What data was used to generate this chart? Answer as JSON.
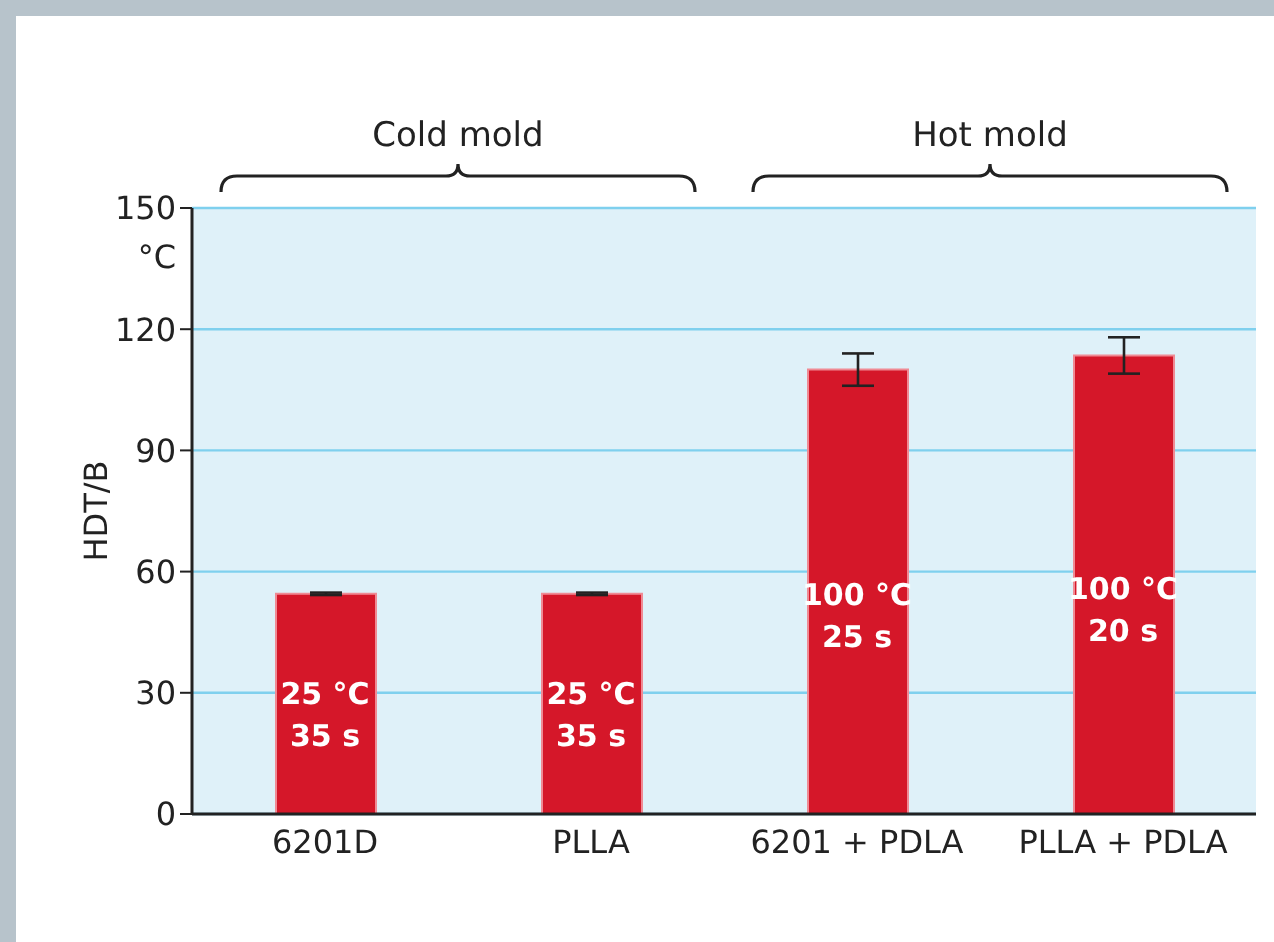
{
  "chart_data": {
    "type": "bar",
    "ylabel": "HDT/B",
    "categories": [
      "6201D",
      "PLLA",
      "6201 + PDLA",
      "PLLA + PDLA"
    ],
    "values": [
      54.5,
      54.5,
      110,
      113.5
    ],
    "errors": [
      0.3,
      0.3,
      4,
      4.5
    ],
    "color": "#d51729",
    "ylim": [
      0,
      150
    ],
    "yticks": [
      0,
      30,
      60,
      90,
      120,
      150
    ],
    "grid": "y",
    "annotations": [
      "°C",
      "Cold mold",
      "Hot mold",
      "25 °C\n35 s",
      "25 °C\n35 s",
      "100 °C\n25 s",
      "100 °C\n20 s"
    ]
  }
}
